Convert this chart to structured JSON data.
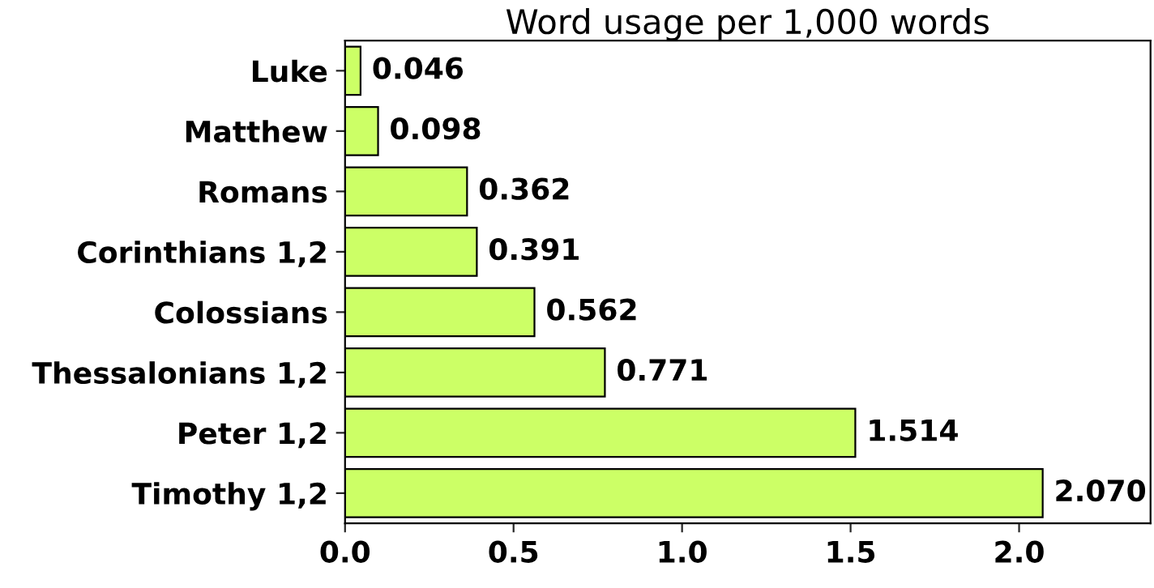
{
  "chart_data": {
    "type": "bar",
    "orientation": "horizontal",
    "title": "Word usage per 1,000 words",
    "categories": [
      "Luke",
      "Matthew",
      "Romans",
      "Corinthians 1,2",
      "Colossians",
      "Thessalonians 1,2",
      "Peter 1,2",
      "Timothy 1,2"
    ],
    "values": [
      0.046,
      0.098,
      0.362,
      0.391,
      0.562,
      0.771,
      1.514,
      2.07
    ],
    "value_labels": [
      "0.046",
      "0.098",
      "0.362",
      "0.391",
      "0.562",
      "0.771",
      "1.514",
      "2.070"
    ],
    "color": "#ccff66",
    "xlim": [
      0,
      2.39
    ],
    "xticks": [
      {
        "value": 0,
        "label": "0.0"
      },
      {
        "value": 0.5,
        "label": "0.5"
      },
      {
        "value": 1,
        "label": "1.0"
      },
      {
        "value": 1.5,
        "label": "1.5"
      },
      {
        "value": 2,
        "label": "2.0"
      }
    ],
    "grid": false
  }
}
